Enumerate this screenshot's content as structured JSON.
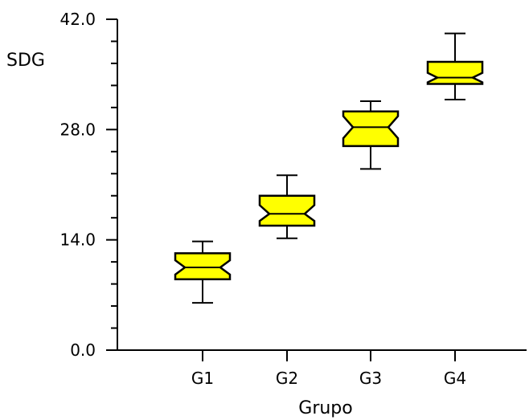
{
  "chart_data": {
    "type": "boxplot",
    "notched": true,
    "title": "",
    "xlabel": "Grupo",
    "ylabel": "SDG",
    "ylim": [
      0,
      42
    ],
    "y_major_ticks": [
      "0.0",
      "14.0",
      "28.0",
      "42.0"
    ],
    "y_minor_tick_step": 2.8,
    "categories": [
      "G1",
      "G2",
      "G3",
      "G4"
    ],
    "box_color": "#ffff00",
    "line_color": "#000000",
    "boxes": [
      {
        "category": "G1",
        "whisker_low": 6.0,
        "q1": 9.0,
        "median": 10.5,
        "q3": 12.3,
        "whisker_high": 13.8,
        "notch_low": 9.6,
        "notch_high": 11.4
      },
      {
        "category": "G2",
        "whisker_low": 14.2,
        "q1": 15.8,
        "median": 17.3,
        "q3": 19.6,
        "whisker_high": 22.2,
        "notch_low": 16.4,
        "notch_high": 18.4
      },
      {
        "category": "G3",
        "whisker_low": 23.0,
        "q1": 25.9,
        "median": 28.3,
        "q3": 30.3,
        "whisker_high": 31.6,
        "notch_low": 26.9,
        "notch_high": 29.7
      },
      {
        "category": "G4",
        "whisker_low": 31.8,
        "q1": 33.8,
        "median": 34.6,
        "q3": 36.6,
        "whisker_high": 40.2,
        "notch_low": 34.0,
        "notch_high": 35.2
      }
    ]
  }
}
